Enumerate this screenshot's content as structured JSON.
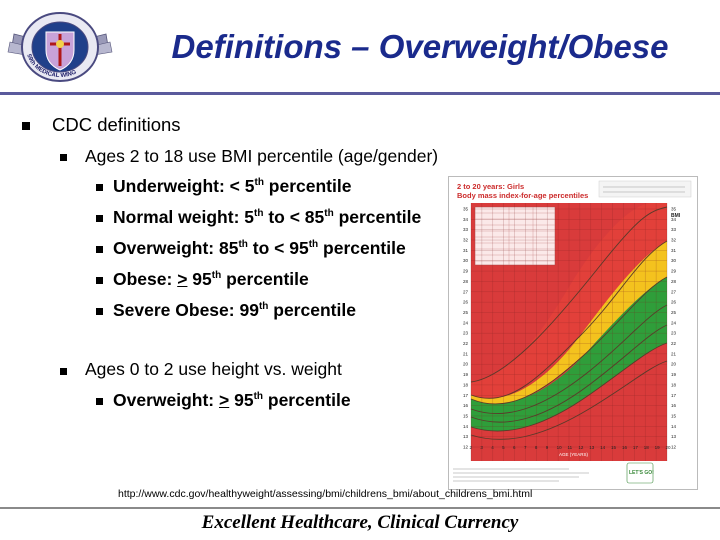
{
  "slide": {
    "title": "Definitions – Overweight/Obese",
    "logo": {
      "label": "59th MEDICAL WING",
      "ring_text": "59th MEDICAL WING"
    },
    "bullets": {
      "level1": "CDC definitions",
      "group1": {
        "text": "Ages 2 to 18 use BMI percentile (age/gender)",
        "items": [
          {
            "prefix": "Underweight: < 5",
            "sup": "th",
            "suffix": " percentile"
          },
          {
            "prefix": "Normal weight: 5",
            "sup": "th",
            "mid": " to < 85",
            "sup2": "th",
            "suffix": " percentile"
          },
          {
            "prefix": "Overweight: 85",
            "sup": "th",
            "mid": " to < 95",
            "sup2": "th",
            "suffix": " percentile"
          },
          {
            "prefix": "Obese: ",
            "underlined": ">",
            "mid": " 95",
            "sup": "th",
            "suffix": " percentile"
          },
          {
            "prefix": "Severe Obese:  99",
            "sup": "th",
            "suffix": " percentile"
          }
        ]
      },
      "group2": {
        "text": "Ages 0 to 2 use height vs. weight",
        "items": [
          {
            "prefix": "Overweight: ",
            "underlined": ">",
            "mid": " 95",
            "sup": "th",
            "suffix": " percentile"
          }
        ]
      }
    },
    "chart_image": {
      "heading_line1": "2 to 20 years: Girls",
      "heading_line2": "Body mass index-for-age percentiles",
      "y_axis_label": "BMI",
      "x_axis_label": "AGE (YEARS)",
      "y_ticks_left": [
        "35",
        "34",
        "33",
        "32",
        "31",
        "30",
        "29",
        "28",
        "27",
        "26",
        "25",
        "24",
        "23",
        "22",
        "21",
        "20",
        "19",
        "18",
        "17",
        "16",
        "15",
        "14",
        "13",
        "12"
      ],
      "y_ticks_right": [
        "35",
        "34",
        "33",
        "32",
        "31",
        "30",
        "29",
        "28",
        "27",
        "26",
        "25",
        "24",
        "23",
        "22",
        "21",
        "20",
        "19",
        "18",
        "17",
        "16",
        "15",
        "14",
        "13",
        "12"
      ],
      "x_ticks": [
        "2",
        "3",
        "4",
        "5",
        "6",
        "7",
        "8",
        "9",
        "10",
        "11",
        "12",
        "13",
        "14",
        "15",
        "16",
        "17",
        "18",
        "19",
        "20"
      ],
      "footer_brand": "LET'S GO!",
      "colors": {
        "underweight": "#d93b3b",
        "normal": "#2f9e3a",
        "overweight": "#f4c21e",
        "obese": "#e2403a",
        "curve": "#5a3a2a"
      }
    },
    "source_url": "http://www.cdc.gov/healthyweight/assessing/bmi/childrens_bmi/about_childrens_bmi.html",
    "footer": "Excellent Healthcare, Clinical Currency"
  }
}
